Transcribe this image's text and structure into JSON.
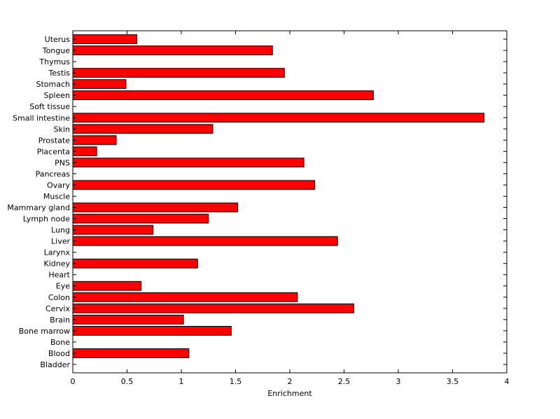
{
  "chart_data": {
    "type": "bar",
    "orientation": "horizontal",
    "xlabel": "Enrichment",
    "ylabel": "",
    "title": "",
    "xlim": [
      0,
      4
    ],
    "xticks": [
      "0",
      "0.5",
      "1",
      "1.5",
      "2",
      "2.5",
      "3",
      "3.5",
      "4"
    ],
    "grid": false,
    "bar_color": "#ff0000",
    "categories": [
      "Uterus",
      "Tongue",
      "Thymus",
      "Testis",
      "Stomach",
      "Spleen",
      "Soft tissue",
      "Small intestine",
      "Skin",
      "Prostate",
      "Placenta",
      "PNS",
      "Pancreas",
      "Ovary",
      "Muscle",
      "Mammary gland",
      "Lymph node",
      "Lung",
      "Liver",
      "Larynx",
      "Kidney",
      "Heart",
      "Eye",
      "Colon",
      "Cervix",
      "Brain",
      "Bone marrow",
      "Bone",
      "Blood",
      "Bladder"
    ],
    "values": [
      0.59,
      1.84,
      0,
      1.95,
      0.49,
      2.77,
      0,
      3.79,
      1.29,
      0.4,
      0.22,
      2.13,
      0,
      2.23,
      0,
      1.52,
      1.25,
      0.74,
      2.44,
      0,
      1.15,
      0,
      0.63,
      2.07,
      2.59,
      1.02,
      1.46,
      0,
      1.07,
      0
    ]
  }
}
